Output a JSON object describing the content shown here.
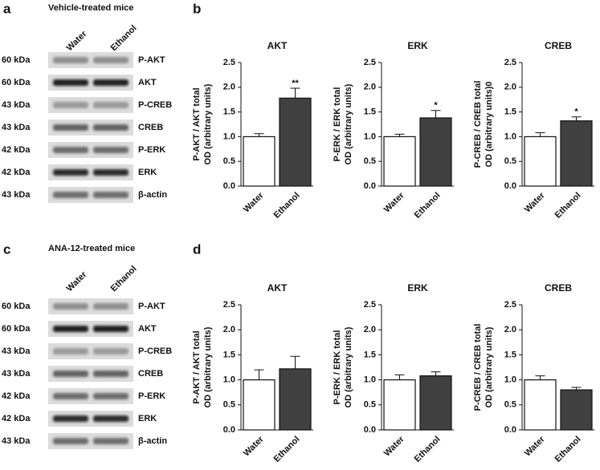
{
  "panel_labels": [
    "a",
    "b",
    "c",
    "d"
  ],
  "blots": [
    {
      "title": "Vehicle-treated mice",
      "lanes": [
        "Water",
        "Ethanol"
      ],
      "rows": [
        {
          "kda": "60 kDa",
          "protein": "P-AKT"
        },
        {
          "kda": "60 kDa",
          "protein": "AKT"
        },
        {
          "kda": "43 kDa",
          "protein": "P-CREB"
        },
        {
          "kda": "43 kDa",
          "protein": "CREB"
        },
        {
          "kda": "42 kDa",
          "protein": "P-ERK"
        },
        {
          "kda": "42 kDa",
          "protein": "ERK"
        },
        {
          "kda": "43 kDa",
          "protein": "β-actin"
        }
      ]
    },
    {
      "title": "ANA-12-treated mice",
      "lanes": [
        "Water",
        "Ethanol"
      ],
      "rows": [
        {
          "kda": "60 kDa",
          "protein": "P-AKT"
        },
        {
          "kda": "60 kDa",
          "protein": "AKT"
        },
        {
          "kda": "43 kDa",
          "protein": "P-CREB"
        },
        {
          "kda": "43 kDa",
          "protein": "CREB"
        },
        {
          "kda": "42 kDa",
          "protein": "P-ERK"
        },
        {
          "kda": "42 kDa",
          "protein": "ERK"
        },
        {
          "kda": "43 kDa",
          "protein": "β-actin"
        }
      ]
    }
  ],
  "chart_data": [
    {
      "type": "bar",
      "title": "AKT",
      "ylabel": [
        "P-AKT / AKT total",
        "OD (arbitrary units)"
      ],
      "categories": [
        "Water",
        "Ethanol"
      ],
      "values": [
        1.0,
        1.78
      ],
      "errors": [
        0.06,
        0.2
      ],
      "significance": [
        null,
        "**"
      ],
      "colors": [
        "#ffffff",
        "#404040"
      ],
      "ylim": [
        0,
        2.5
      ],
      "yticks": [
        {
          "value": 0,
          "label": "0.0"
        },
        {
          "value": 0.5,
          "label": "0.5"
        },
        {
          "value": 1,
          "label": "1.0"
        },
        {
          "value": 1.5,
          "label": "1.5"
        },
        {
          "value": 2,
          "label": "2.0"
        },
        {
          "value": 2.5,
          "label": "2.5"
        }
      ]
    },
    {
      "type": "bar",
      "title": "ERK",
      "ylabel": [
        "P-ERK / ERK total",
        "OD (arbitrary units)"
      ],
      "categories": [
        "Water",
        "Ethanol"
      ],
      "values": [
        1.0,
        1.38
      ],
      "errors": [
        0.05,
        0.15
      ],
      "significance": [
        null,
        "*"
      ],
      "colors": [
        "#ffffff",
        "#404040"
      ],
      "ylim": [
        0,
        2.5
      ],
      "yticks": [
        {
          "value": 0,
          "label": "0.0"
        },
        {
          "value": 0.5,
          "label": "0.5"
        },
        {
          "value": 1,
          "label": "1.0"
        },
        {
          "value": 1.5,
          "label": "1.5"
        },
        {
          "value": 2,
          "label": "2.0"
        },
        {
          "value": 2.5,
          "label": "2.5"
        }
      ]
    },
    {
      "type": "bar",
      "title": "CREB",
      "ylabel": [
        "P-CREB / CREB total",
        "OD (arbitrary units)0"
      ],
      "categories": [
        "Water",
        "Ethanol"
      ],
      "values": [
        1.0,
        1.32
      ],
      "errors": [
        0.08,
        0.08
      ],
      "significance": [
        null,
        "*"
      ],
      "colors": [
        "#ffffff",
        "#404040"
      ],
      "ylim": [
        0,
        2.5
      ],
      "yticks": [
        {
          "value": 0,
          "label": "0.0"
        },
        {
          "value": 0.5,
          "label": "0.5"
        },
        {
          "value": 1,
          "label": "1.0"
        },
        {
          "value": 1.5,
          "label": "1.5"
        },
        {
          "value": 2,
          "label": "2.0"
        },
        {
          "value": 2.5,
          "label": "2.5"
        }
      ]
    },
    {
      "type": "bar",
      "title": "AKT",
      "ylabel": [
        "P-AKT / AKT total",
        "OD (arbitrary units)"
      ],
      "categories": [
        "Water",
        "Ethanol"
      ],
      "values": [
        1.0,
        1.22
      ],
      "errors": [
        0.2,
        0.25
      ],
      "colors": [
        "#ffffff",
        "#404040"
      ],
      "ylim": [
        0,
        2.5
      ],
      "yticks": [
        {
          "value": 0,
          "label": "0.0"
        },
        {
          "value": 0.5,
          "label": "0.5"
        },
        {
          "value": 1,
          "label": "1.0"
        },
        {
          "value": 1.5,
          "label": "1.5"
        },
        {
          "value": 2,
          "label": "2.0"
        },
        {
          "value": 2.5,
          "label": "2.5"
        }
      ]
    },
    {
      "type": "bar",
      "title": "ERK",
      "ylabel": [
        "P-ERK / ERK total",
        "OD (arbitrary units)"
      ],
      "categories": [
        "Water",
        "Ethanol"
      ],
      "values": [
        1.0,
        1.08
      ],
      "errors": [
        0.1,
        0.08
      ],
      "colors": [
        "#ffffff",
        "#404040"
      ],
      "ylim": [
        0,
        2.5
      ],
      "yticks": [
        {
          "value": 0,
          "label": "0.0"
        },
        {
          "value": 0.5,
          "label": "0.5"
        },
        {
          "value": 1,
          "label": "1.0"
        },
        {
          "value": 1.5,
          "label": "1.5"
        },
        {
          "value": 2,
          "label": "2.0"
        },
        {
          "value": 2.5,
          "label": "2.5"
        }
      ]
    },
    {
      "type": "bar",
      "title": "CREB",
      "ylabel": [
        "P-CREB / CREB total",
        "OD (arbitrary units)"
      ],
      "categories": [
        "Water",
        "Ethanol"
      ],
      "values": [
        1.0,
        0.8
      ],
      "errors": [
        0.08,
        0.05
      ],
      "colors": [
        "#ffffff",
        "#404040"
      ],
      "ylim": [
        0,
        2.5
      ],
      "yticks": [
        {
          "value": 0,
          "label": "0.0"
        },
        {
          "value": 0.5,
          "label": "0.5"
        },
        {
          "value": 1,
          "label": "1.0"
        },
        {
          "value": 1.5,
          "label": "1.5"
        },
        {
          "value": 2,
          "label": "2.0"
        },
        {
          "value": 2.5,
          "label": "2.5"
        }
      ]
    }
  ]
}
